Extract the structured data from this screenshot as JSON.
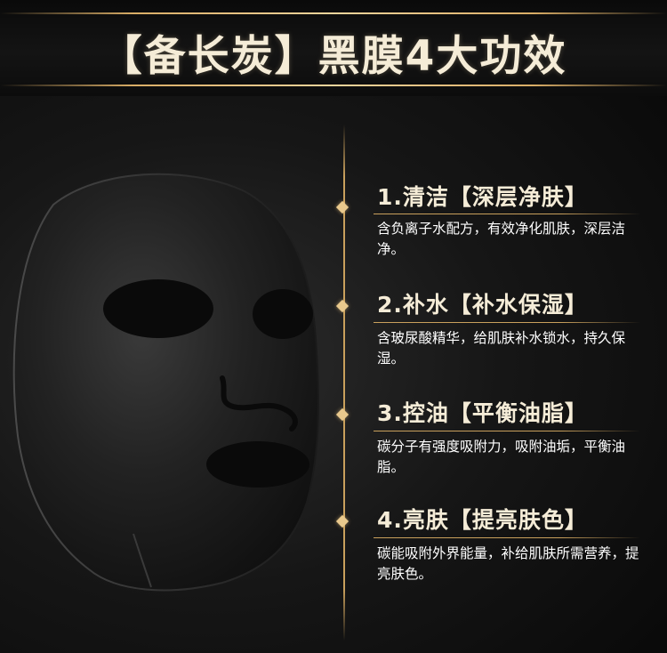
{
  "header": {
    "title": "【备长炭】黑膜4大功效"
  },
  "colors": {
    "gold": "#c9a05c",
    "title_text": "#f5ecd7",
    "background": "#0b0b0b"
  },
  "features": [
    {
      "title": "1.清洁【深层净肤】",
      "desc": "含负离子水配方，有效净化肌肤，深层洁净。"
    },
    {
      "title": "2.补水【补水保湿】",
      "desc": "含玻尿酸精华，给肌肤补水锁水，持久保湿。"
    },
    {
      "title": "3.控油【平衡油脂】",
      "desc": "碳分子有强度吸附力，吸附油垢，平衡油脂。"
    },
    {
      "title": "4.亮肤【提亮肤色】",
      "desc": "碳能吸附外界能量，补给肌肤所需营养，提亮肤色。"
    }
  ]
}
